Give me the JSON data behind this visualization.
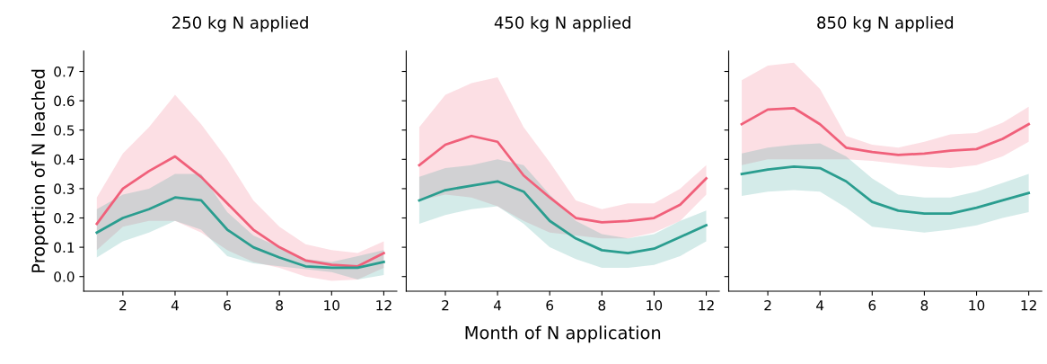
{
  "chart_data": [
    {
      "type": "line",
      "title": "250 kg N applied",
      "ylabel": "Proportion of N leached",
      "x": [
        1,
        2,
        3,
        4,
        5,
        6,
        7,
        8,
        9,
        10,
        11,
        12
      ],
      "xlim": [
        0.5,
        12.5
      ],
      "xticks": [
        2,
        4,
        6,
        8,
        10,
        12
      ],
      "ylim": [
        -0.05,
        0.77
      ],
      "yticks": [
        {
          "value": 0,
          "label": "0.0"
        },
        0.1,
        0.2,
        0.3,
        0.4,
        0.5,
        0.6,
        0.7
      ],
      "grid": false,
      "series": [
        {
          "color": "#f0607a",
          "values": [
            0.18,
            0.3,
            0.36,
            0.41,
            0.34,
            0.25,
            0.16,
            0.1,
            0.055,
            0.04,
            0.035,
            0.08
          ],
          "lower": [
            0.09,
            0.17,
            0.19,
            0.19,
            0.15,
            0.09,
            0.05,
            0.03,
            0.0,
            -0.015,
            -0.01,
            0.03
          ],
          "upper": [
            0.27,
            0.42,
            0.51,
            0.62,
            0.52,
            0.4,
            0.26,
            0.17,
            0.11,
            0.09,
            0.08,
            0.12
          ]
        },
        {
          "color": "#2a9d8f",
          "values": [
            0.15,
            0.2,
            0.23,
            0.27,
            0.26,
            0.16,
            0.1,
            0.065,
            0.035,
            0.03,
            0.03,
            0.05
          ],
          "lower": [
            0.065,
            0.12,
            0.15,
            0.19,
            0.16,
            0.07,
            0.045,
            0.035,
            0.025,
            0.015,
            -0.01,
            0.005
          ],
          "upper": [
            0.23,
            0.28,
            0.3,
            0.35,
            0.35,
            0.22,
            0.14,
            0.1,
            0.06,
            0.05,
            0.07,
            0.09
          ]
        }
      ]
    },
    {
      "type": "line",
      "title": "450 kg N applied",
      "xlabel": "Month of N application",
      "x": [
        1,
        2,
        3,
        4,
        5,
        6,
        7,
        8,
        9,
        10,
        11,
        12
      ],
      "xlim": [
        0.5,
        12.5
      ],
      "xticks": [
        2,
        4,
        6,
        8,
        10,
        12
      ],
      "ylim": [
        -0.05,
        0.77
      ],
      "yticks": [
        {
          "value": 0,
          "label": null
        },
        {
          "value": 0.1,
          "label": null
        },
        {
          "value": 0.2,
          "label": null
        },
        {
          "value": 0.3,
          "label": null
        },
        {
          "value": 0.4,
          "label": null
        },
        {
          "value": 0.5,
          "label": null
        },
        {
          "value": 0.6,
          "label": null
        },
        {
          "value": 0.7,
          "label": null
        }
      ],
      "tick_labels": "x",
      "grid": false,
      "series": [
        {
          "color": "#f0607a",
          "values": [
            0.38,
            0.45,
            0.48,
            0.46,
            0.345,
            0.27,
            0.2,
            0.185,
            0.19,
            0.2,
            0.245,
            0.335
          ],
          "lower": [
            0.26,
            0.28,
            0.27,
            0.24,
            0.19,
            0.15,
            0.14,
            0.13,
            0.13,
            0.15,
            0.19,
            0.28
          ],
          "upper": [
            0.51,
            0.62,
            0.66,
            0.68,
            0.51,
            0.39,
            0.26,
            0.23,
            0.25,
            0.25,
            0.3,
            0.38
          ]
        },
        {
          "color": "#2a9d8f",
          "values": [
            0.26,
            0.295,
            0.31,
            0.325,
            0.29,
            0.19,
            0.13,
            0.09,
            0.08,
            0.095,
            0.135,
            0.175
          ],
          "lower": [
            0.18,
            0.21,
            0.23,
            0.24,
            0.18,
            0.1,
            0.06,
            0.03,
            0.03,
            0.04,
            0.07,
            0.12
          ],
          "upper": [
            0.34,
            0.37,
            0.38,
            0.4,
            0.38,
            0.28,
            0.19,
            0.145,
            0.13,
            0.145,
            0.19,
            0.225
          ]
        }
      ]
    },
    {
      "type": "line",
      "title": "850 kg N applied",
      "x": [
        1,
        2,
        3,
        4,
        5,
        6,
        7,
        8,
        9,
        10,
        11,
        12
      ],
      "xlim": [
        0.5,
        12.5
      ],
      "xticks": [
        2,
        4,
        6,
        8,
        10,
        12
      ],
      "ylim": [
        -0.05,
        0.77
      ],
      "yticks": [
        {
          "value": 0,
          "label": null
        },
        {
          "value": 0.1,
          "label": null
        },
        {
          "value": 0.2,
          "label": null
        },
        {
          "value": 0.3,
          "label": null
        },
        {
          "value": 0.4,
          "label": null
        },
        {
          "value": 0.5,
          "label": null
        },
        {
          "value": 0.6,
          "label": null
        },
        {
          "value": 0.7,
          "label": null
        }
      ],
      "tick_labels": "x",
      "grid": false,
      "series": [
        {
          "color": "#f0607a",
          "values": [
            0.52,
            0.57,
            0.575,
            0.52,
            0.44,
            0.425,
            0.415,
            0.42,
            0.43,
            0.435,
            0.47,
            0.52
          ],
          "lower": [
            0.38,
            0.4,
            0.4,
            0.4,
            0.4,
            0.395,
            0.385,
            0.375,
            0.37,
            0.38,
            0.41,
            0.46
          ],
          "upper": [
            0.67,
            0.72,
            0.73,
            0.64,
            0.48,
            0.45,
            0.44,
            0.46,
            0.485,
            0.49,
            0.525,
            0.58
          ]
        },
        {
          "color": "#2a9d8f",
          "values": [
            0.35,
            0.365,
            0.375,
            0.37,
            0.325,
            0.255,
            0.225,
            0.215,
            0.215,
            0.235,
            0.26,
            0.285
          ],
          "lower": [
            0.275,
            0.29,
            0.295,
            0.29,
            0.235,
            0.17,
            0.16,
            0.15,
            0.16,
            0.175,
            0.2,
            0.22
          ],
          "upper": [
            0.42,
            0.44,
            0.45,
            0.455,
            0.41,
            0.335,
            0.28,
            0.27,
            0.27,
            0.29,
            0.32,
            0.35
          ]
        }
      ]
    }
  ]
}
